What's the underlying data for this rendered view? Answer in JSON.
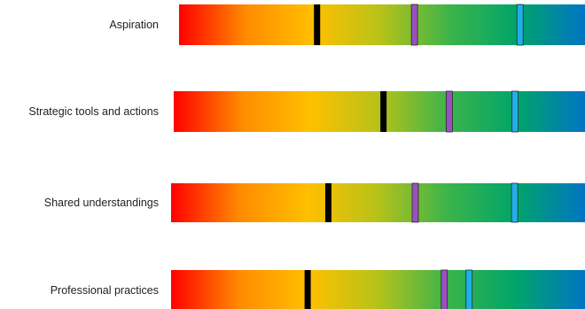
{
  "chart_data": {
    "type": "bar",
    "title": "",
    "rows": [
      {
        "label": "Aspiration",
        "markers": {
          "black": 0.34,
          "purple": 0.58,
          "blue": 0.84
        }
      },
      {
        "label": "Strategic tools and actions",
        "markers": {
          "black": 0.51,
          "purple": 0.67,
          "blue": 0.83
        }
      },
      {
        "label": "Shared understandings",
        "markers": {
          "black": 0.38,
          "purple": 0.59,
          "blue": 0.83
        }
      },
      {
        "label": "Professional practices",
        "markers": {
          "black": 0.33,
          "purple": 0.66,
          "blue": 0.72
        }
      }
    ],
    "scale": [
      0,
      1
    ],
    "gradient_colors": [
      "#ff0000",
      "#ff8c00",
      "#ffc000",
      "#b5c21a",
      "#3cb44a",
      "#00a46a",
      "#0075c4"
    ],
    "marker_colors": {
      "black": "#000000",
      "purple": "#9b4fc0",
      "blue": "#1fb0ea"
    },
    "legend": "none",
    "grid": false
  }
}
